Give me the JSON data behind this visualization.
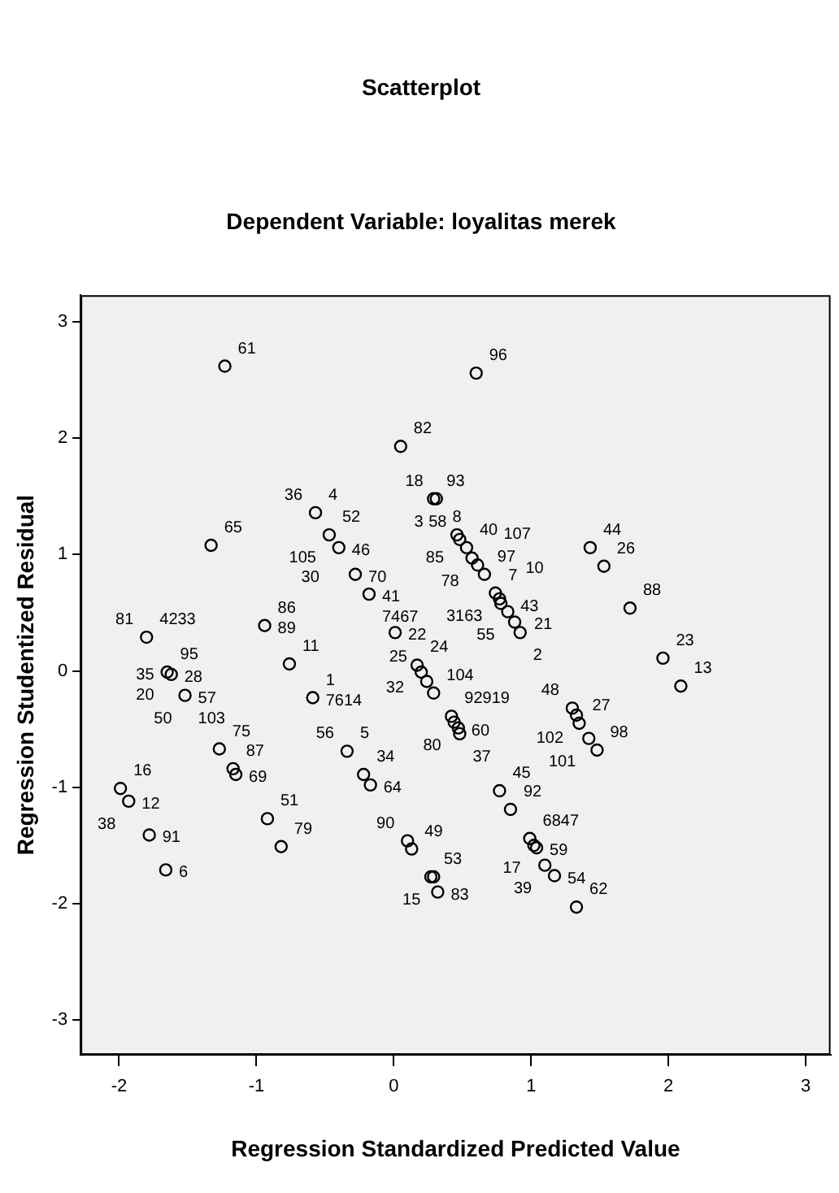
{
  "chart_data": {
    "type": "scatter",
    "title": "Scatterplot",
    "subtitle": "Dependent Variable: loyalitas merek",
    "xlabel": "Regression Standardized Predicted Value",
    "ylabel": "Regression Studentized Residual",
    "x": [
      -1.23,
      0.05,
      0.6,
      -0.57,
      -0.47,
      -0.4,
      -1.33,
      -0.28,
      -0.18,
      -0.94,
      -1.8,
      0.01,
      -0.76,
      -1.65,
      -1.62,
      0.17,
      0.2,
      0.24,
      0.29,
      -1.52,
      -0.59,
      -1.27,
      -1.17,
      -1.15,
      -1.99,
      -1.93,
      -1.78,
      -1.66,
      -0.92,
      -0.82,
      -0.34,
      -0.22,
      -0.17,
      0.1,
      0.13,
      0.27,
      0.29,
      0.32,
      0.42,
      0.44,
      0.47,
      0.48,
      0.77,
      0.85,
      0.99,
      1.02,
      1.04,
      1.1,
      1.17,
      1.33,
      1.3,
      1.33,
      1.35,
      1.42,
      1.48,
      2.09,
      1.96,
      0.29,
      0.31,
      0.46,
      0.48,
      0.53,
      0.57,
      0.61,
      0.66,
      0.74,
      0.77,
      0.78,
      0.83,
      0.88,
      0.92,
      1.43,
      1.53,
      1.72
    ],
    "values": [
      2.62,
      1.93,
      2.56,
      1.36,
      1.17,
      1.06,
      1.08,
      0.83,
      0.66,
      0.39,
      0.29,
      0.33,
      0.06,
      -0.01,
      -0.03,
      0.05,
      -0.01,
      -0.09,
      -0.19,
      -0.21,
      -0.23,
      -0.67,
      -0.84,
      -0.89,
      -1.01,
      -1.12,
      -1.41,
      -1.71,
      -1.27,
      -1.51,
      -0.69,
      -0.89,
      -0.98,
      -1.46,
      -1.53,
      -1.77,
      -1.77,
      -1.9,
      -0.39,
      -0.44,
      -0.49,
      -0.54,
      -1.03,
      -1.19,
      -1.44,
      -1.5,
      -1.52,
      -1.67,
      -1.76,
      -2.03,
      -0.32,
      -0.38,
      -0.45,
      -0.58,
      -0.68,
      -0.13,
      0.11,
      1.48,
      1.48,
      1.17,
      1.13,
      1.06,
      0.97,
      0.91,
      0.83,
      0.67,
      0.62,
      0.58,
      0.51,
      0.42,
      0.33,
      1.06,
      0.9,
      0.54
    ],
    "color": "#000000",
    "marker": "circle",
    "xlim": [
      -2.28,
      3.18
    ],
    "ylim": [
      -3.3,
      3.23
    ],
    "xticks": [
      -2,
      -1,
      0,
      1,
      2,
      3
    ],
    "yticks": [
      -3,
      -2,
      -1,
      0,
      1,
      2,
      3
    ],
    "annotations": [
      {
        "text": "61",
        "x": -1.23,
        "y": 2.62
      },
      {
        "text": "82",
        "x": 0.05,
        "y": 1.93
      },
      {
        "text": "96",
        "x": 0.6,
        "y": 2.56
      },
      {
        "text": "93",
        "x": 0.29,
        "y": 1.48
      },
      {
        "text": "18",
        "x": 0.31,
        "y": 1.48
      },
      {
        "text": "3",
        "x": 0.31,
        "y": 1.48
      },
      {
        "text": "4",
        "x": -0.57,
        "y": 1.36
      },
      {
        "text": "36",
        "x": -0.57,
        "y": 1.36
      },
      {
        "text": "52",
        "x": -0.47,
        "y": 1.17
      },
      {
        "text": "105",
        "x": -0.47,
        "y": 1.17
      },
      {
        "text": "46",
        "x": -0.4,
        "y": 1.06
      },
      {
        "text": "30",
        "x": -0.4,
        "y": 1.06
      },
      {
        "text": "65",
        "x": -1.33,
        "y": 1.08
      },
      {
        "text": "70",
        "x": -0.28,
        "y": 0.83
      },
      {
        "text": "41",
        "x": -0.18,
        "y": 0.66
      },
      {
        "text": "7467",
        "x": -0.18,
        "y": 0.66
      },
      {
        "text": "85",
        "x": 0.46,
        "y": 1.17
      },
      {
        "text": "8",
        "x": 0.46,
        "y": 1.17
      },
      {
        "text": "58",
        "x": 0.48,
        "y": 1.13
      },
      {
        "text": "40",
        "x": 0.53,
        "y": 1.06
      },
      {
        "text": "78",
        "x": 0.57,
        "y": 0.97
      },
      {
        "text": "107",
        "x": 0.61,
        "y": 0.91
      },
      {
        "text": "97",
        "x": 0.66,
        "y": 0.83
      },
      {
        "text": "7",
        "x": 0.74,
        "y": 0.67
      },
      {
        "text": "3163",
        "x": 0.74,
        "y": 0.67
      },
      {
        "text": "10",
        "x": 0.77,
        "y": 0.62
      },
      {
        "text": "43",
        "x": 0.78,
        "y": 0.58
      },
      {
        "text": "55",
        "x": 0.83,
        "y": 0.51
      },
      {
        "text": "21",
        "x": 0.88,
        "y": 0.42
      },
      {
        "text": "2",
        "x": 0.92,
        "y": 0.33
      },
      {
        "text": "44",
        "x": 1.43,
        "y": 1.06
      },
      {
        "text": "26",
        "x": 1.53,
        "y": 0.9
      },
      {
        "text": "88",
        "x": 1.72,
        "y": 0.54
      },
      {
        "text": "23",
        "x": 1.96,
        "y": 0.11
      },
      {
        "text": "13",
        "x": 2.09,
        "y": -0.13
      },
      {
        "text": "86",
        "x": -0.94,
        "y": 0.39
      },
      {
        "text": "89",
        "x": -0.94,
        "y": 0.39
      },
      {
        "text": "4233",
        "x": -1.8,
        "y": 0.29
      },
      {
        "text": "81",
        "x": -1.8,
        "y": 0.29
      },
      {
        "text": "22",
        "x": 0.01,
        "y": 0.33
      },
      {
        "text": "11",
        "x": -0.76,
        "y": 0.06
      },
      {
        "text": "95",
        "x": -1.65,
        "y": -0.01
      },
      {
        "text": "20",
        "x": -1.65,
        "y": -0.01
      },
      {
        "text": "35",
        "x": -1.65,
        "y": -0.01
      },
      {
        "text": "28",
        "x": -1.62,
        "y": -0.03
      },
      {
        "text": "57",
        "x": -1.52,
        "y": -0.21
      },
      {
        "text": "103",
        "x": -1.52,
        "y": -0.21
      },
      {
        "text": "50",
        "x": -1.52,
        "y": -0.21
      },
      {
        "text": "1",
        "x": -0.59,
        "y": -0.23
      },
      {
        "text": "7614",
        "x": -0.59,
        "y": -0.23
      },
      {
        "text": "24",
        "x": 0.17,
        "y": 0.05
      },
      {
        "text": "32",
        "x": 0.17,
        "y": 0.05
      },
      {
        "text": "25",
        "x": 0.24,
        "y": -0.09
      },
      {
        "text": "104",
        "x": 0.29,
        "y": -0.19
      },
      {
        "text": "92919",
        "x": 0.42,
        "y": -0.39
      },
      {
        "text": "80",
        "x": 0.44,
        "y": -0.44
      },
      {
        "text": "60",
        "x": 0.47,
        "y": -0.49
      },
      {
        "text": "37",
        "x": 0.48,
        "y": -0.54
      },
      {
        "text": "48",
        "x": 1.3,
        "y": -0.32
      },
      {
        "text": "102",
        "x": 1.33,
        "y": -0.38
      },
      {
        "text": "27",
        "x": 1.35,
        "y": -0.45
      },
      {
        "text": "101",
        "x": 1.42,
        "y": -0.58
      },
      {
        "text": "98",
        "x": 1.48,
        "y": -0.68
      },
      {
        "text": "45",
        "x": 0.77,
        "y": -1.03
      },
      {
        "text": "92",
        "x": 0.85,
        "y": -1.19
      },
      {
        "text": "6847",
        "x": 0.99,
        "y": -1.44
      },
      {
        "text": "17",
        "x": 1.02,
        "y": -1.5
      },
      {
        "text": "59",
        "x": 1.04,
        "y": -1.52
      },
      {
        "text": "39",
        "x": 1.1,
        "y": -1.67
      },
      {
        "text": "54",
        "x": 1.17,
        "y": -1.76
      },
      {
        "text": "62",
        "x": 1.33,
        "y": -2.03
      },
      {
        "text": "90",
        "x": 0.1,
        "y": -1.46
      },
      {
        "text": "49",
        "x": 0.13,
        "y": -1.53
      },
      {
        "text": "53",
        "x": 0.27,
        "y": -1.77
      },
      {
        "text": "15",
        "x": 0.29,
        "y": -1.77
      },
      {
        "text": "83",
        "x": 0.32,
        "y": -1.9
      },
      {
        "text": "5",
        "x": -0.34,
        "y": -0.69
      },
      {
        "text": "56",
        "x": -0.34,
        "y": -0.69
      },
      {
        "text": "34",
        "x": -0.22,
        "y": -0.89
      },
      {
        "text": "64",
        "x": -0.17,
        "y": -0.98
      },
      {
        "text": "75",
        "x": -1.27,
        "y": -0.67
      },
      {
        "text": "87",
        "x": -1.17,
        "y": -0.84
      },
      {
        "text": "69",
        "x": -1.15,
        "y": -0.89
      },
      {
        "text": "16",
        "x": -1.99,
        "y": -1.01
      },
      {
        "text": "12",
        "x": -1.93,
        "y": -1.12
      },
      {
        "text": "38",
        "x": -1.93,
        "y": -1.12
      },
      {
        "text": "91",
        "x": -1.78,
        "y": -1.41
      },
      {
        "text": "6",
        "x": -1.66,
        "y": -1.71
      },
      {
        "text": "51",
        "x": -0.92,
        "y": -1.27
      },
      {
        "text": "79",
        "x": -0.82,
        "y": -1.51
      }
    ]
  }
}
